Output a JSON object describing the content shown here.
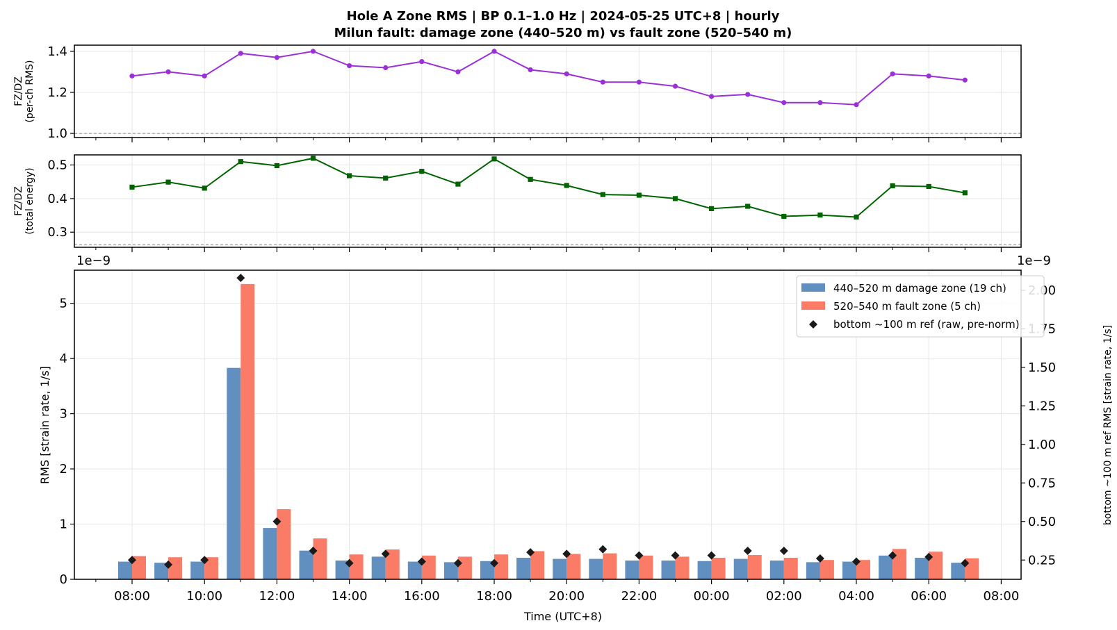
{
  "chart_data": {
    "title_line1": "Hole A Zone RMS  |  BP 0.1–1.0 Hz  |  2024-05-25 UTC+8  |  hourly",
    "title_line2": "Milun fault: damage zone (440–520 m) vs fault zone (520–540 m)",
    "x_label": "Time (UTC+8)",
    "x_tick_labels": [
      "08:00",
      "10:00",
      "12:00",
      "14:00",
      "16:00",
      "18:00",
      "20:00",
      "22:00",
      "00:00",
      "02:00",
      "04:00",
      "06:00",
      "08:00"
    ],
    "hours": [
      "08:00",
      "09:00",
      "10:00",
      "11:00",
      "12:00",
      "13:00",
      "14:00",
      "15:00",
      "16:00",
      "17:00",
      "18:00",
      "19:00",
      "20:00",
      "21:00",
      "22:00",
      "23:00",
      "00:00",
      "01:00",
      "02:00",
      "03:00",
      "04:00",
      "05:00",
      "06:00",
      "07:00"
    ],
    "panels": [
      {
        "type": "line",
        "ylabel_line1": "FZ/DZ",
        "ylabel_line2": "(per-ch RMS)",
        "ylim": [
          0.98,
          1.43
        ],
        "yticks": [
          1.0,
          1.2,
          1.4
        ],
        "ytick_labels": [
          "1.0",
          "1.2",
          "1.4"
        ],
        "ref_line": 1.0,
        "color": "#9b30d9",
        "marker": "circle",
        "values": [
          1.28,
          1.3,
          1.28,
          1.39,
          1.37,
          1.4,
          1.33,
          1.32,
          1.35,
          1.3,
          1.4,
          1.31,
          1.29,
          1.25,
          1.25,
          1.23,
          1.18,
          1.19,
          1.15,
          1.15,
          1.14,
          1.29,
          1.28,
          1.26
        ]
      },
      {
        "type": "line",
        "ylabel_line1": "FZ/DZ",
        "ylabel_line2": "(total energy)",
        "ylim": [
          0.255,
          0.53
        ],
        "yticks": [
          0.3,
          0.4,
          0.5
        ],
        "ytick_labels": [
          "0.3",
          "0.4",
          "0.5"
        ],
        "ref_line": 0.263,
        "color": "#006400",
        "marker": "square",
        "values": [
          0.434,
          0.449,
          0.431,
          0.51,
          0.498,
          0.52,
          0.468,
          0.461,
          0.481,
          0.443,
          0.518,
          0.457,
          0.439,
          0.412,
          0.41,
          0.4,
          0.37,
          0.377,
          0.347,
          0.351,
          0.345,
          0.438,
          0.436,
          0.417
        ]
      }
    ],
    "bar_panel": {
      "type": "bar",
      "offset_left": "1e−9",
      "offset_right": "1e−9",
      "ylabel": "RMS  [strain rate, 1/s]",
      "ylim": [
        0,
        5.6
      ],
      "yticks": [
        0,
        1,
        2,
        3,
        4,
        5
      ],
      "ytick_labels": [
        "0",
        "1",
        "2",
        "3",
        "4",
        "5"
      ],
      "y2label": "bottom ~100 m ref RMS  [strain rate, 1/s]",
      "y2lim": [
        0.125,
        2.13
      ],
      "y2ticks": [
        0.25,
        0.5,
        0.75,
        1.0,
        1.25,
        1.5,
        1.75,
        2.0
      ],
      "y2tick_labels": [
        "0.25",
        "0.50",
        "0.75",
        "1.00",
        "1.25",
        "1.50",
        "1.75",
        "2.00"
      ],
      "series": [
        {
          "name": "440–520 m  damage zone (19 ch)",
          "color": "#6190c0",
          "values": [
            0.32,
            0.3,
            0.32,
            3.83,
            0.93,
            0.52,
            0.34,
            0.41,
            0.32,
            0.31,
            0.33,
            0.39,
            0.37,
            0.37,
            0.34,
            0.34,
            0.33,
            0.37,
            0.34,
            0.31,
            0.32,
            0.43,
            0.39,
            0.3
          ]
        },
        {
          "name": "520–540 m  fault zone (5 ch)",
          "color": "#fa7b66",
          "values": [
            0.42,
            0.4,
            0.4,
            5.35,
            1.27,
            0.74,
            0.45,
            0.54,
            0.43,
            0.41,
            0.45,
            0.51,
            0.46,
            0.47,
            0.43,
            0.41,
            0.39,
            0.44,
            0.39,
            0.35,
            0.35,
            0.55,
            0.5,
            0.38
          ]
        }
      ],
      "ref_series": {
        "name": "bottom ~100 m ref (raw, pre-norm)",
        "color": "#1a1a1a",
        "values": [
          0.25,
          0.22,
          0.25,
          2.08,
          0.5,
          0.31,
          0.23,
          0.29,
          0.24,
          0.23,
          0.23,
          0.3,
          0.29,
          0.32,
          0.28,
          0.28,
          0.28,
          0.31,
          0.31,
          0.26,
          0.24,
          0.28,
          0.27,
          0.23
        ]
      }
    }
  }
}
